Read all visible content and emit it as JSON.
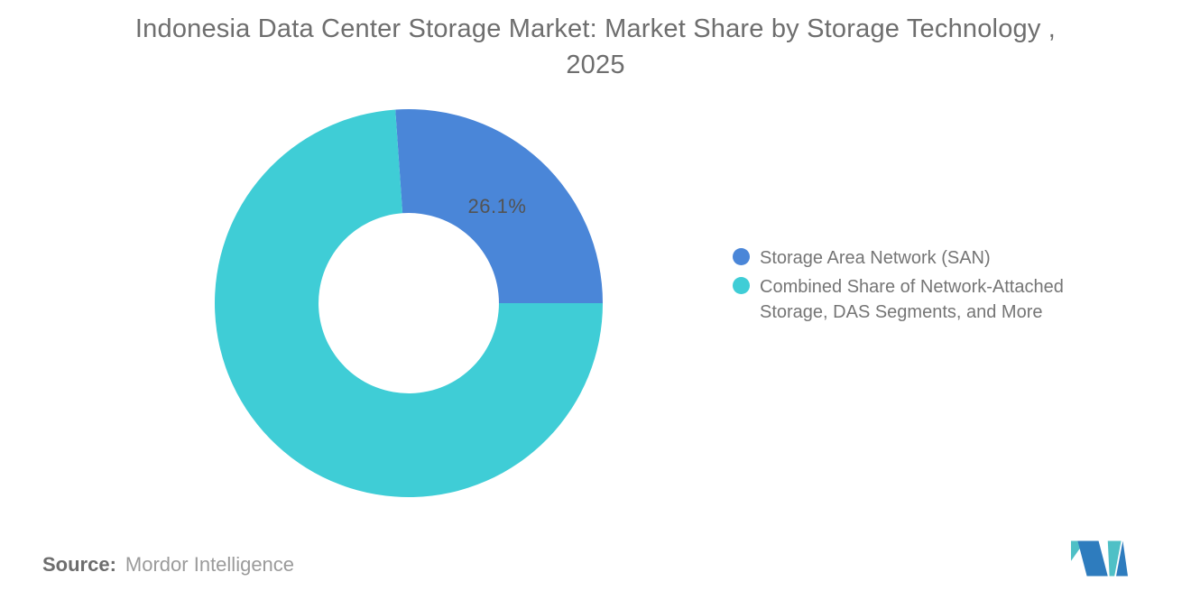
{
  "header": {
    "title_line1": "Indonesia Data Center Storage Market: Market Share by Storage Technology ,",
    "title_line2": "2025"
  },
  "chart_data": {
    "type": "pie",
    "subtype": "donut",
    "title": "Indonesia Data Center Storage Market: Market Share by Storage Technology , 2025",
    "unit": "%",
    "slices": [
      {
        "name": "Storage Area Network (SAN)",
        "value": 26.1,
        "color": "#4A86D8",
        "data_label": "26.1%"
      },
      {
        "name": "Combined Share of Network-Attached Storage, DAS Segments, and More",
        "value": 73.9,
        "color": "#3FCDD6",
        "data_label": ""
      }
    ],
    "donut_hole_ratio": 0.465,
    "first_slice_end_angle_clock": "3 o'clock (90deg)",
    "legend_position": "right",
    "background": "#ffffff"
  },
  "annotations": {
    "san_share_label": "26.1%"
  },
  "legend": {
    "items": [
      {
        "label": "Storage Area Network (SAN)",
        "color": "#4A86D8"
      },
      {
        "label": "Combined Share of Network-Attached Storage, DAS Segments, and More",
        "color": "#3FCDD6"
      }
    ]
  },
  "source": {
    "prefix": "Source:",
    "name": "Mordor Intelligence"
  },
  "logo": {
    "icon": "mordor-intelligence-m-icon",
    "teal": "#4FC0C6",
    "blue": "#2E7CBE"
  }
}
